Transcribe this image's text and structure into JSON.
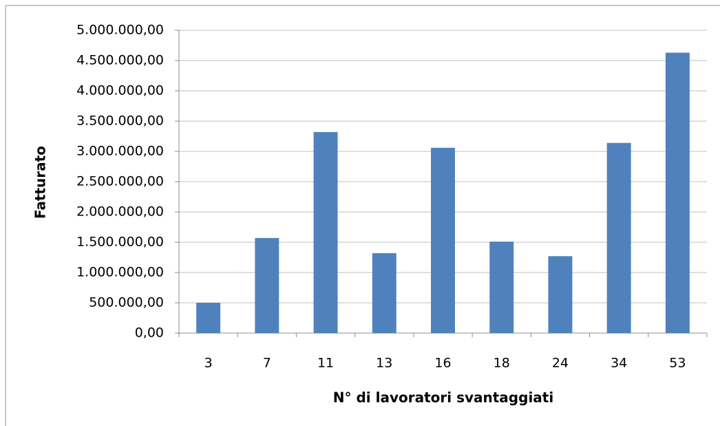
{
  "chart_data": {
    "type": "bar",
    "x_label": "N° di lavoratori svantaggiati",
    "y_label": "Fatturato",
    "categories": [
      "3",
      "7",
      "11",
      "13",
      "16",
      "18",
      "24",
      "34",
      "53"
    ],
    "values": [
      500000,
      1570000,
      3320000,
      1320000,
      3060000,
      1510000,
      1270000,
      3140000,
      4630000
    ],
    "color": "#4f81bd",
    "ylim": [
      0,
      5000000
    ],
    "yticks": [
      {
        "value": 0,
        "label": "0,00"
      },
      {
        "value": 500000,
        "label": "500.000,00"
      },
      {
        "value": 1000000,
        "label": "1.000.000,00"
      },
      {
        "value": 1500000,
        "label": "1.500.000,00"
      },
      {
        "value": 2000000,
        "label": "2.000.000,00"
      },
      {
        "value": 2500000,
        "label": "2.500.000,00"
      },
      {
        "value": 3000000,
        "label": "3.000.000,00"
      },
      {
        "value": 3500000,
        "label": "3.500.000,00"
      },
      {
        "value": 4000000,
        "label": "4.000.000,00"
      },
      {
        "value": 4500000,
        "label": "4.500.000,00"
      },
      {
        "value": 5000000,
        "label": "5.000.000,00"
      }
    ],
    "grid": true
  }
}
